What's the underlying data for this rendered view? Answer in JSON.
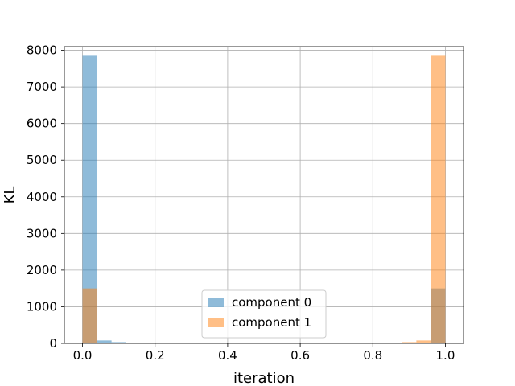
{
  "chart_data": {
    "type": "histogram",
    "xlabel": "iteration",
    "ylabel": "KL",
    "xlim": [
      -0.05,
      1.05
    ],
    "ylim": [
      0,
      8100
    ],
    "xticks": [
      0.0,
      0.2,
      0.4,
      0.6,
      0.8,
      1.0
    ],
    "xtick_labels": [
      "0.0",
      "0.2",
      "0.4",
      "0.6",
      "0.8",
      "1.0"
    ],
    "yticks": [
      0,
      1000,
      2000,
      3000,
      4000,
      5000,
      6000,
      7000,
      8000
    ],
    "ytick_labels": [
      "0",
      "1000",
      "2000",
      "3000",
      "4000",
      "5000",
      "6000",
      "7000",
      "8000"
    ],
    "grid": true,
    "legend_position": "lower center",
    "bin_edges": [
      0.0,
      0.04,
      0.08,
      0.12,
      0.16,
      0.2,
      0.24,
      0.28,
      0.32,
      0.36,
      0.4,
      0.44,
      0.48,
      0.52,
      0.56,
      0.6,
      0.64,
      0.68,
      0.72,
      0.76,
      0.8,
      0.84,
      0.88,
      0.92,
      0.96,
      1.0
    ],
    "series": [
      {
        "name": "component 0",
        "color": "#1f77b4",
        "opacity": 0.5,
        "values": [
          7850,
          80,
          35,
          15,
          10,
          8,
          6,
          5,
          5,
          5,
          4,
          4,
          4,
          4,
          4,
          4,
          4,
          4,
          5,
          5,
          6,
          8,
          12,
          20,
          1500
        ]
      },
      {
        "name": "component 1",
        "color": "#ff7f0e",
        "opacity": 0.5,
        "values": [
          1500,
          20,
          12,
          8,
          6,
          5,
          5,
          4,
          4,
          4,
          4,
          4,
          4,
          4,
          4,
          5,
          5,
          5,
          6,
          8,
          10,
          15,
          35,
          80,
          7850
        ]
      }
    ]
  }
}
